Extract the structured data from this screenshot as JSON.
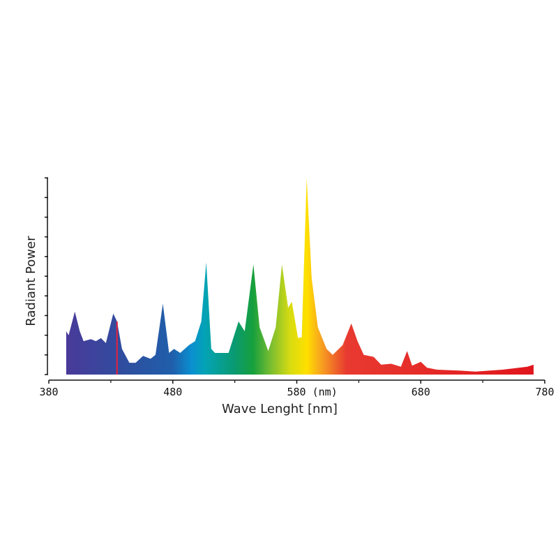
{
  "chart_data": {
    "type": "area",
    "title": "",
    "xlabel": "Wave Lenght [nm]",
    "ylabel": "Radiant Power",
    "xlim": [
      380,
      780
    ],
    "ylim": [
      0,
      10
    ],
    "x_ticks": [
      380,
      480,
      580,
      680,
      780
    ],
    "x_tick_labels": [
      "380",
      "480",
      "580 (nm)",
      "680",
      "780"
    ],
    "x_minor_ticks": [
      430,
      530,
      630,
      730
    ],
    "y_tick_count": 10,
    "y_tick_labels_shown": false,
    "grid": false,
    "fill": "spectral color gradient",
    "highlight_line_nm": 435,
    "highlight_line_color": "#e8203a",
    "points": [
      [
        394,
        0
      ],
      [
        394,
        2.2
      ],
      [
        396,
        2.0
      ],
      [
        401,
        3.2
      ],
      [
        405,
        2.2
      ],
      [
        408,
        1.7
      ],
      [
        414,
        1.8
      ],
      [
        418,
        1.7
      ],
      [
        422,
        1.85
      ],
      [
        426,
        1.6
      ],
      [
        432,
        3.1
      ],
      [
        435,
        2.7
      ],
      [
        439,
        1.3
      ],
      [
        445,
        0.6
      ],
      [
        450,
        0.6
      ],
      [
        456,
        0.95
      ],
      [
        462,
        0.8
      ],
      [
        466,
        1.0
      ],
      [
        472,
        3.6
      ],
      [
        477,
        1.1
      ],
      [
        481,
        1.3
      ],
      [
        486,
        1.1
      ],
      [
        493,
        1.5
      ],
      [
        498,
        1.7
      ],
      [
        503,
        2.7
      ],
      [
        507,
        5.7
      ],
      [
        511,
        1.3
      ],
      [
        514,
        1.1
      ],
      [
        520,
        1.1
      ],
      [
        525,
        1.1
      ],
      [
        533,
        2.7
      ],
      [
        538,
        2.2
      ],
      [
        545,
        5.6
      ],
      [
        550,
        2.4
      ],
      [
        557,
        1.2
      ],
      [
        563,
        2.4
      ],
      [
        568,
        5.6
      ],
      [
        573,
        3.4
      ],
      [
        576,
        3.7
      ],
      [
        581,
        1.85
      ],
      [
        584,
        1.9
      ],
      [
        588,
        10
      ],
      [
        592,
        4.9
      ],
      [
        597,
        2.4
      ],
      [
        604,
        1.3
      ],
      [
        609,
        1.0
      ],
      [
        617,
        1.5
      ],
      [
        624,
        2.6
      ],
      [
        629,
        1.7
      ],
      [
        634,
        1.0
      ],
      [
        642,
        0.9
      ],
      [
        648,
        0.5
      ],
      [
        656,
        0.55
      ],
      [
        664,
        0.4
      ],
      [
        669,
        1.2
      ],
      [
        673,
        0.45
      ],
      [
        680,
        0.65
      ],
      [
        685,
        0.35
      ],
      [
        693,
        0.25
      ],
      [
        712,
        0.2
      ],
      [
        724,
        0.15
      ],
      [
        746,
        0.25
      ],
      [
        766,
        0.4
      ],
      [
        771,
        0.5
      ],
      [
        771,
        0
      ]
    ],
    "gradient_stops": [
      [
        394,
        "#4a3a9a"
      ],
      [
        440,
        "#2f4d9e"
      ],
      [
        480,
        "#1f5fab"
      ],
      [
        495,
        "#0a8fd0"
      ],
      [
        506,
        "#03a3b5"
      ],
      [
        530,
        "#0a9a70"
      ],
      [
        545,
        "#17a03c"
      ],
      [
        560,
        "#80bf30"
      ],
      [
        575,
        "#d8dc10"
      ],
      [
        588,
        "#ffe000"
      ],
      [
        600,
        "#f7a020"
      ],
      [
        620,
        "#e83a30"
      ],
      [
        780,
        "#e0141c"
      ]
    ]
  }
}
